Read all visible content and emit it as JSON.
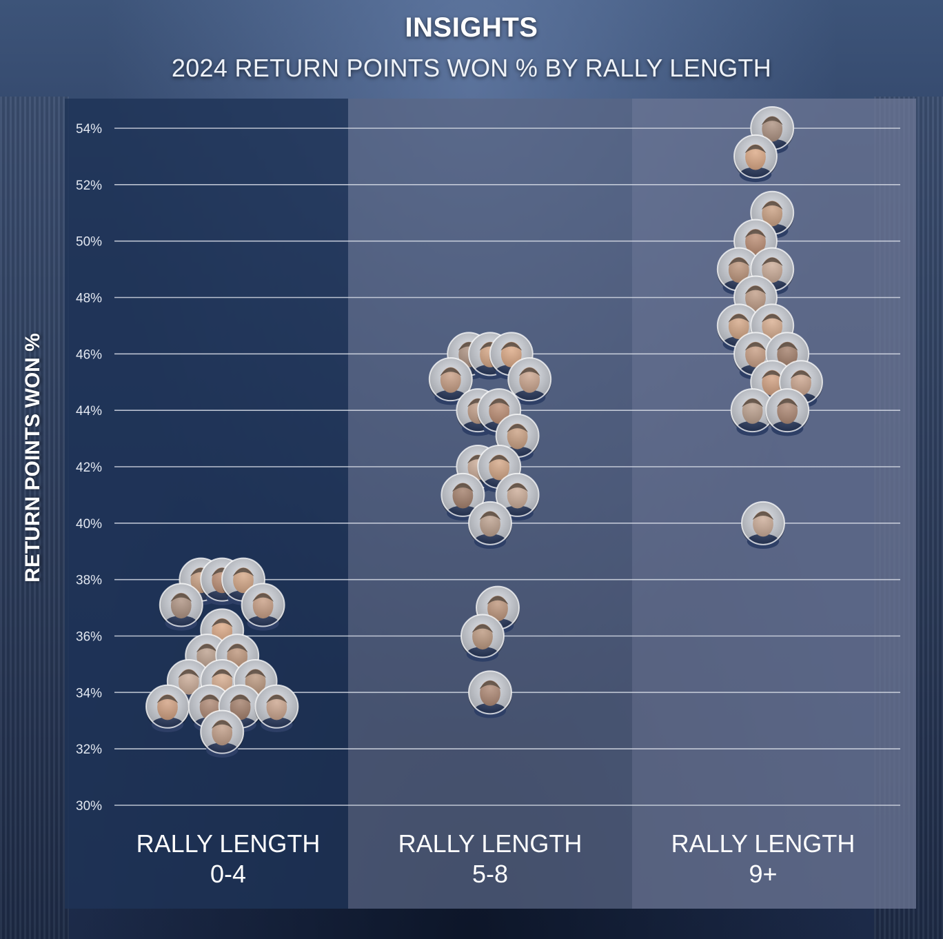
{
  "header": {
    "title": "INSIGHTS",
    "subtitle": "2024 RETURN POINTS WON % BY RALLY LENGTH"
  },
  "colors": {
    "panel_0": "#1f3357",
    "panel_1": "#5a6785",
    "panel_2": "#6a7594",
    "gridline": "#d7dce6",
    "text": "#ffffff"
  },
  "chart_data": {
    "type": "scatter",
    "title": "2024 RETURN POINTS WON % BY RALLY LENGTH",
    "ylabel": "RETURN POINTS WON %",
    "ylim": [
      30,
      54
    ],
    "yticks": [
      30,
      32,
      34,
      36,
      38,
      40,
      42,
      44,
      46,
      48,
      50,
      52,
      54
    ],
    "ytick_labels": [
      "30%",
      "32%",
      "34%",
      "36%",
      "38%",
      "40%",
      "42%",
      "44%",
      "46%",
      "48%",
      "50%",
      "52%",
      "54%"
    ],
    "grid": true,
    "categories": [
      {
        "label_line1": "RALLY LENGTH",
        "label_line2": "0-4"
      },
      {
        "label_line1": "RALLY LENGTH",
        "label_line2": "5-8"
      },
      {
        "label_line1": "RALLY LENGTH",
        "label_line2": "9+"
      }
    ],
    "points": [
      {
        "c": 0,
        "y": 38.0,
        "o": -1.8,
        "color": "#c79a7a"
      },
      {
        "c": 0,
        "y": 38.0,
        "o": -0.4,
        "color": "#b8866a"
      },
      {
        "c": 0,
        "y": 38.0,
        "o": 1.0,
        "color": "#d2a17e"
      },
      {
        "c": 0,
        "y": 37.1,
        "o": -3.1,
        "color": "#a88a78"
      },
      {
        "c": 0,
        "y": 37.1,
        "o": 2.3,
        "color": "#c4977b"
      },
      {
        "c": 0,
        "y": 36.2,
        "o": -0.4,
        "color": "#d9a27c"
      },
      {
        "c": 0,
        "y": 35.3,
        "o": -1.4,
        "color": "#b89a86"
      },
      {
        "c": 0,
        "y": 35.3,
        "o": 0.6,
        "color": "#b98e72"
      },
      {
        "c": 0,
        "y": 34.4,
        "o": -2.6,
        "color": "#c8a690"
      },
      {
        "c": 0,
        "y": 34.4,
        "o": -0.4,
        "color": "#d6a888"
      },
      {
        "c": 0,
        "y": 34.4,
        "o": 1.8,
        "color": "#b79176"
      },
      {
        "c": 0,
        "y": 33.5,
        "o": -4.0,
        "color": "#cf9a78"
      },
      {
        "c": 0,
        "y": 33.5,
        "o": -1.2,
        "color": "#a9806a"
      },
      {
        "c": 0,
        "y": 33.5,
        "o": 0.8,
        "color": "#9d7660"
      },
      {
        "c": 0,
        "y": 33.5,
        "o": 3.2,
        "color": "#c89f86"
      },
      {
        "c": 0,
        "y": 32.6,
        "o": -0.4,
        "color": "#bd977f"
      },
      {
        "c": 1,
        "y": 46.0,
        "o": -1.4,
        "color": "#a88a78"
      },
      {
        "c": 1,
        "y": 46.0,
        "o": 0.0,
        "color": "#d3a07c"
      },
      {
        "c": 1,
        "y": 46.0,
        "o": 1.4,
        "color": "#d9a27c"
      },
      {
        "c": 1,
        "y": 45.1,
        "o": -2.6,
        "color": "#c4977b"
      },
      {
        "c": 1,
        "y": 45.1,
        "o": 2.6,
        "color": "#c89f86"
      },
      {
        "c": 1,
        "y": 44.0,
        "o": -0.8,
        "color": "#bd977f"
      },
      {
        "c": 1,
        "y": 44.0,
        "o": 0.6,
        "color": "#b8866a"
      },
      {
        "c": 1,
        "y": 43.1,
        "o": 1.8,
        "color": "#c79a7a"
      },
      {
        "c": 1,
        "y": 42.0,
        "o": -0.8,
        "color": "#c8a690"
      },
      {
        "c": 1,
        "y": 42.0,
        "o": 0.6,
        "color": "#d2a17e"
      },
      {
        "c": 1,
        "y": 41.0,
        "o": -1.8,
        "color": "#9d7660"
      },
      {
        "c": 1,
        "y": 41.0,
        "o": 1.8,
        "color": "#c8a690"
      },
      {
        "c": 1,
        "y": 40.0,
        "o": 0.0,
        "color": "#b89a86"
      },
      {
        "c": 1,
        "y": 37.0,
        "o": 0.5,
        "color": "#b98e72"
      },
      {
        "c": 1,
        "y": 36.0,
        "o": -0.5,
        "color": "#b79176"
      },
      {
        "c": 1,
        "y": 34.0,
        "o": 0.0,
        "color": "#a9806a"
      },
      {
        "c": 2,
        "y": 54.0,
        "o": 0.6,
        "color": "#a88a78"
      },
      {
        "c": 2,
        "y": 53.0,
        "o": -0.5,
        "color": "#d9a27c"
      },
      {
        "c": 2,
        "y": 51.0,
        "o": 0.6,
        "color": "#c79a7a"
      },
      {
        "c": 2,
        "y": 50.0,
        "o": -0.5,
        "color": "#b8866a"
      },
      {
        "c": 2,
        "y": 49.0,
        "o": -1.6,
        "color": "#b98e72"
      },
      {
        "c": 2,
        "y": 49.0,
        "o": 0.6,
        "color": "#c8a690"
      },
      {
        "c": 2,
        "y": 48.0,
        "o": -0.5,
        "color": "#bd977f"
      },
      {
        "c": 2,
        "y": 47.0,
        "o": -1.6,
        "color": "#d2a17e"
      },
      {
        "c": 2,
        "y": 47.0,
        "o": 0.6,
        "color": "#d6a888"
      },
      {
        "c": 2,
        "y": 46.0,
        "o": -0.5,
        "color": "#c4977b"
      },
      {
        "c": 2,
        "y": 46.0,
        "o": 1.6,
        "color": "#9d7660"
      },
      {
        "c": 2,
        "y": 45.0,
        "o": 0.6,
        "color": "#cf9a78"
      },
      {
        "c": 2,
        "y": 45.0,
        "o": 2.5,
        "color": "#c89f86"
      },
      {
        "c": 2,
        "y": 44.0,
        "o": -0.7,
        "color": "#b89a86"
      },
      {
        "c": 2,
        "y": 44.0,
        "o": 1.6,
        "color": "#a9806a"
      },
      {
        "c": 2,
        "y": 40.0,
        "o": 0.0,
        "color": "#c8a690"
      }
    ]
  }
}
